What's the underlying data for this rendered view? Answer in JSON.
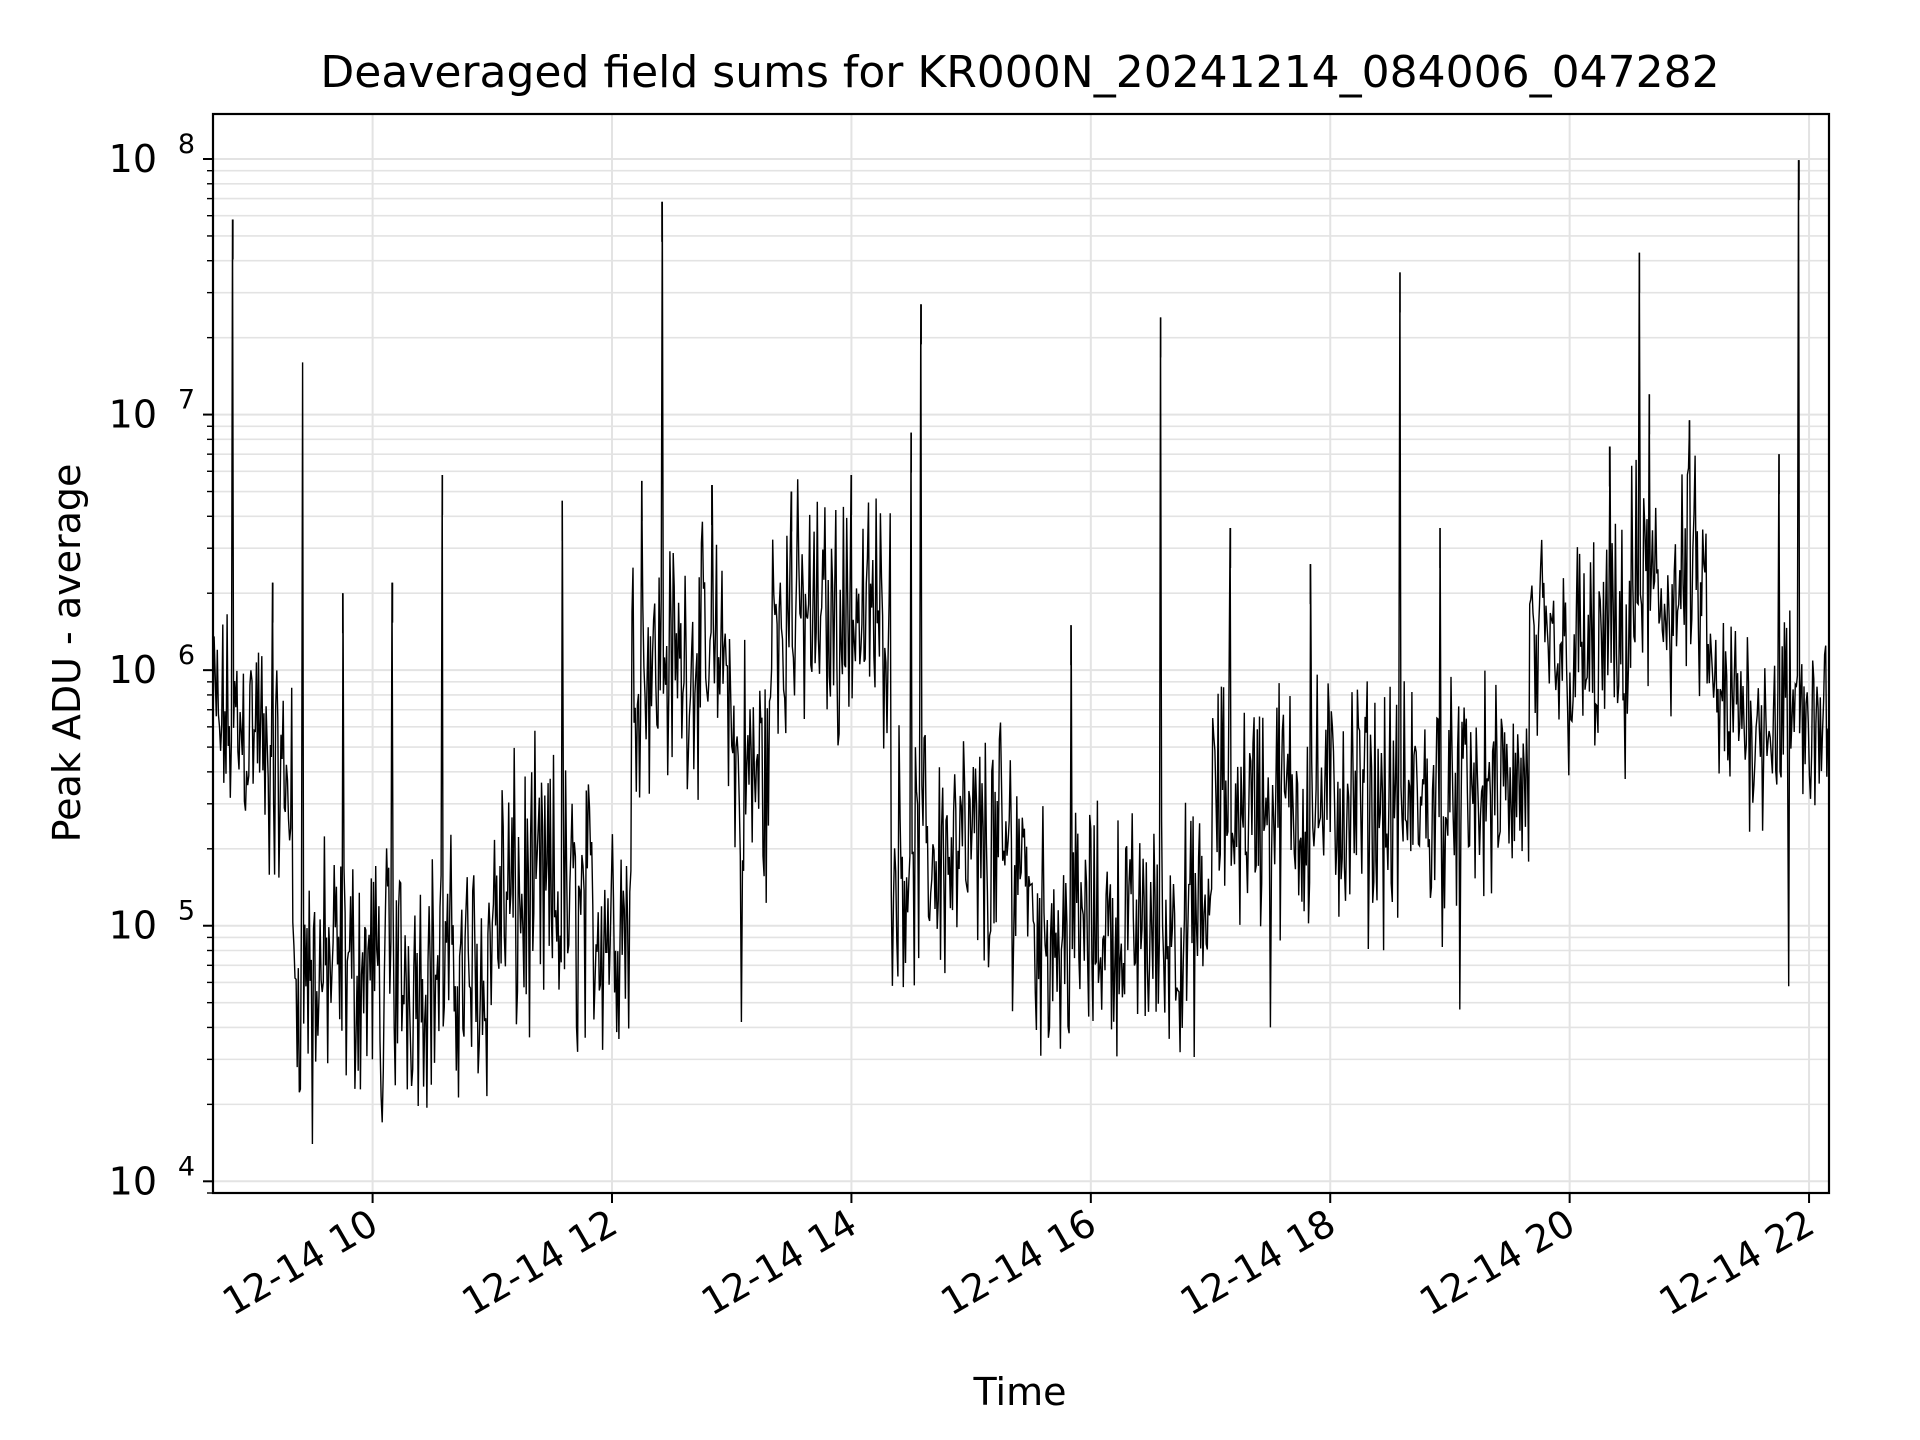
{
  "chart_data": {
    "type": "line",
    "title": "Deaveraged field sums for KR000N_20241214_084006_047282",
    "xlabel": "Time",
    "ylabel": "Peak ADU - average",
    "yscale": "log",
    "ylim": [
      9000,
      150000000
    ],
    "xlim": [
      "12-14 08:40",
      "12-14 22:10"
    ],
    "grid": true,
    "x_ticks": [
      {
        "value": "12-14 10:00",
        "label": "12-14 10"
      },
      {
        "value": "12-14 12:00",
        "label": "12-14 12"
      },
      {
        "value": "12-14 14:00",
        "label": "12-14 14"
      },
      {
        "value": "12-14 16:00",
        "label": "12-14 16"
      },
      {
        "value": "12-14 18:00",
        "label": "12-14 18"
      },
      {
        "value": "12-14 20:00",
        "label": "12-14 20"
      },
      {
        "value": "12-14 22:00",
        "label": "12-14 22"
      }
    ],
    "y_ticks": [
      {
        "value": 10000,
        "base": "10",
        "exp": "4"
      },
      {
        "value": 100000,
        "base": "10",
        "exp": "5"
      },
      {
        "value": 1000000,
        "base": "10",
        "exp": "6"
      },
      {
        "value": 10000000,
        "base": "10",
        "exp": "7"
      },
      {
        "value": 100000000,
        "base": "10",
        "exp": "8"
      }
    ],
    "series": [
      {
        "color": "#000000",
        "segments": [
          {
            "start": "12-14 08:40",
            "end": "12-14 09:05",
            "low": 250000,
            "high": 1500000
          },
          {
            "start": "12-14 09:05",
            "end": "12-14 09:20",
            "low": 150000,
            "high": 900000
          },
          {
            "start": "12-14 09:20",
            "end": "12-14 11:00",
            "low": 22000,
            "high": 200000
          },
          {
            "start": "12-14 11:00",
            "end": "12-14 11:40",
            "low": 30000,
            "high": 500000
          },
          {
            "start": "12-14 11:40",
            "end": "12-14 12:10",
            "low": 30000,
            "high": 400000
          },
          {
            "start": "12-14 12:10",
            "end": "12-14 13:00",
            "low": 400000,
            "high": 3000000
          },
          {
            "start": "12-14 13:00",
            "end": "12-14 13:20",
            "low": 100000,
            "high": 1500000
          },
          {
            "start": "12-14 13:20",
            "end": "12-14 14:20",
            "low": 600000,
            "high": 4500000
          },
          {
            "start": "12-14 14:20",
            "end": "12-14 15:00",
            "low": 60000,
            "high": 600000
          },
          {
            "start": "12-14 15:00",
            "end": "12-14 15:30",
            "low": 60000,
            "high": 600000
          },
          {
            "start": "12-14 15:30",
            "end": "12-14 17:00",
            "low": 38000,
            "high": 250000
          },
          {
            "start": "12-14 17:00",
            "end": "12-14 19:00",
            "low": 100000,
            "high": 900000
          },
          {
            "start": "12-14 19:00",
            "end": "12-14 19:40",
            "low": 150000,
            "high": 700000
          },
          {
            "start": "12-14 19:40",
            "end": "12-14 20:30",
            "low": 400000,
            "high": 3000000
          },
          {
            "start": "12-14 20:30",
            "end": "12-14 21:10",
            "low": 600000,
            "high": 6000000
          },
          {
            "start": "12-14 21:10",
            "end": "12-14 22:10",
            "low": 300000,
            "high": 1500000
          }
        ],
        "spikes": [
          {
            "x": "12-14 08:50",
            "y": 58000000
          },
          {
            "x": "12-14 09:10",
            "y": 2200000
          },
          {
            "x": "12-14 09:45",
            "y": 2000000
          },
          {
            "x": "12-14 10:10",
            "y": 2200000
          },
          {
            "x": "12-14 10:35",
            "y": 5800000
          },
          {
            "x": "12-14 11:35",
            "y": 4600000
          },
          {
            "x": "12-14 12:15",
            "y": 5500000
          },
          {
            "x": "12-14 12:25",
            "y": 68000000
          },
          {
            "x": "12-14 12:50",
            "y": 5300000
          },
          {
            "x": "12-14 13:30",
            "y": 5000000
          },
          {
            "x": "12-14 14:00",
            "y": 5800000
          },
          {
            "x": "12-14 14:30",
            "y": 8500000
          },
          {
            "x": "12-14 14:35",
            "y": 27000000
          },
          {
            "x": "12-14 15:50",
            "y": 1500000
          },
          {
            "x": "12-14 16:35",
            "y": 24000000
          },
          {
            "x": "12-14 17:10",
            "y": 3600000
          },
          {
            "x": "12-14 17:50",
            "y": 2600000
          },
          {
            "x": "12-14 18:35",
            "y": 36000000
          },
          {
            "x": "12-14 18:55",
            "y": 3600000
          },
          {
            "x": "12-14 20:20",
            "y": 7500000
          },
          {
            "x": "12-14 20:35",
            "y": 43000000
          },
          {
            "x": "12-14 20:40",
            "y": 12000000
          },
          {
            "x": "12-14 21:00",
            "y": 9500000
          },
          {
            "x": "12-14 21:45",
            "y": 7000000
          },
          {
            "x": "12-14 21:55",
            "y": 99000000
          }
        ],
        "dips": [
          {
            "x": "12-14 09:25",
            "y": 16000000
          },
          {
            "x": "12-14 09:30",
            "y": 14000
          },
          {
            "x": "12-14 10:05",
            "y": 17000
          },
          {
            "x": "12-14 13:05",
            "y": 42000
          },
          {
            "x": "12-14 15:45",
            "y": 33000
          },
          {
            "x": "12-14 16:45",
            "y": 32000
          },
          {
            "x": "12-14 17:30",
            "y": 40000
          },
          {
            "x": "12-14 19:05",
            "y": 47000
          },
          {
            "x": "12-14 21:50",
            "y": 58000
          }
        ]
      }
    ]
  }
}
